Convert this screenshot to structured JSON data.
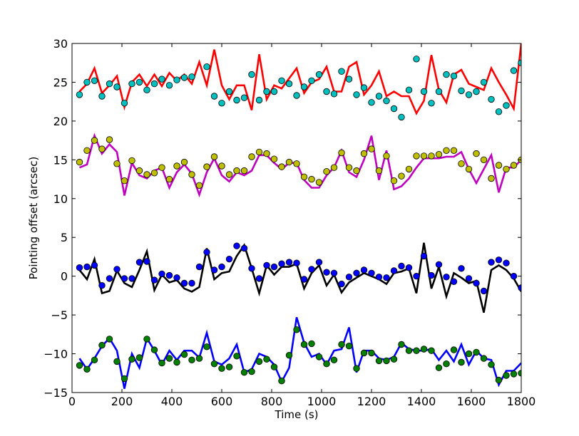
{
  "chart_data": {
    "type": "scatter",
    "xlabel": "Time (s)",
    "ylabel": "Pointing offset (arcsec)",
    "xlim": [
      0,
      1800
    ],
    "ylim": [
      -15,
      30
    ],
    "xticks": [
      "0",
      "200",
      "400",
      "600",
      "800",
      "1000",
      "1200",
      "1400",
      "1600",
      "1800"
    ],
    "yticks": [
      "−15",
      "−10",
      "−5",
      "0",
      "5",
      "10",
      "15",
      "20",
      "25",
      "30"
    ],
    "xtick_values": [
      0,
      200,
      400,
      600,
      800,
      1000,
      1200,
      1400,
      1600,
      1800
    ],
    "ytick_values": [
      -15,
      -10,
      -5,
      0,
      5,
      10,
      15,
      20,
      25,
      30
    ],
    "grid": false,
    "series": [
      {
        "style": "line",
        "color": "#ff0000",
        "x": [
          30,
          60,
          90,
          120,
          150,
          180,
          210,
          240,
          270,
          300,
          330,
          360,
          390,
          420,
          450,
          480,
          510,
          540,
          570,
          600,
          630,
          660,
          690,
          720,
          750,
          780,
          810,
          840,
          870,
          900,
          930,
          960,
          990,
          1020,
          1050,
          1080,
          1110,
          1140,
          1170,
          1200,
          1230,
          1260,
          1290,
          1320,
          1350,
          1380,
          1410,
          1440,
          1470,
          1500,
          1530,
          1560,
          1590,
          1620,
          1650,
          1680,
          1710,
          1740,
          1770,
          1800
        ],
        "values": [
          23.8,
          24.8,
          26.8,
          23.6,
          24.6,
          25.8,
          21.8,
          25.0,
          26.0,
          24.5,
          26.0,
          24.5,
          26.2,
          25.2,
          26.0,
          24.8,
          27.6,
          24.6,
          29.2,
          24.6,
          22.8,
          24.6,
          24.6,
          21.4,
          28.6,
          22.8,
          24.6,
          24.2,
          25.5,
          26.8,
          23.6,
          25.0,
          25.4,
          27.0,
          23.8,
          23.8,
          27.0,
          27.6,
          23.4,
          24.6,
          26.4,
          23.2,
          23.8,
          23.2,
          23.2,
          21.0,
          22.6,
          28.5,
          24.0,
          22.4,
          26.0,
          26.6,
          24.8,
          24.4,
          24.0,
          26.8,
          25.0,
          23.4,
          21.6,
          30.0
        ]
      },
      {
        "style": "points",
        "color": "#00bfbf",
        "x": [
          30,
          60,
          90,
          120,
          150,
          180,
          210,
          240,
          270,
          300,
          330,
          360,
          390,
          420,
          450,
          480,
          540,
          570,
          600,
          630,
          660,
          690,
          720,
          750,
          780,
          810,
          840,
          870,
          900,
          930,
          960,
          990,
          1020,
          1050,
          1080,
          1110,
          1140,
          1170,
          1200,
          1230,
          1260,
          1290,
          1320,
          1350,
          1380,
          1410,
          1440,
          1470,
          1500,
          1530,
          1560,
          1590,
          1620,
          1650,
          1680,
          1710,
          1740,
          1770,
          1800
        ],
        "values": [
          23.4,
          25.0,
          25.2,
          23.2,
          24.8,
          24.4,
          22.3,
          24.8,
          25.0,
          24.0,
          24.8,
          25.4,
          24.6,
          25.3,
          25.6,
          25.7,
          27.0,
          23.2,
          22.3,
          23.8,
          22.7,
          23.0,
          26.0,
          22.7,
          23.8,
          23.8,
          25.2,
          24.8,
          23.3,
          24.4,
          25.2,
          26.0,
          23.8,
          23.5,
          26.4,
          25.4,
          23.4,
          24.3,
          22.4,
          23.2,
          22.6,
          21.6,
          20.5,
          24.0,
          28.0,
          23.8,
          22.3,
          23.8,
          26.0,
          25.8,
          23.9,
          23.4,
          23.8,
          25.0,
          22.8,
          21.2,
          22.0,
          26.5,
          27.5
        ]
      },
      {
        "style": "line",
        "color": "#bf00bf",
        "x": [
          30,
          60,
          90,
          120,
          150,
          180,
          210,
          240,
          270,
          300,
          330,
          360,
          390,
          420,
          450,
          480,
          510,
          540,
          570,
          600,
          630,
          660,
          690,
          720,
          750,
          780,
          810,
          840,
          870,
          900,
          930,
          960,
          990,
          1020,
          1050,
          1080,
          1110,
          1140,
          1170,
          1200,
          1230,
          1260,
          1290,
          1320,
          1350,
          1380,
          1410,
          1440,
          1470,
          1500,
          1530,
          1560,
          1590,
          1620,
          1650,
          1680,
          1710,
          1740,
          1770,
          1800
        ],
        "values": [
          14.0,
          14.4,
          18.1,
          15.8,
          17.0,
          16.0,
          10.4,
          14.6,
          13.0,
          12.6,
          13.6,
          14.0,
          11.4,
          13.4,
          14.4,
          13.2,
          10.5,
          13.4,
          15.2,
          13.0,
          12.2,
          13.4,
          13.0,
          13.6,
          15.6,
          15.6,
          14.6,
          13.8,
          14.6,
          14.6,
          12.4,
          11.4,
          11.4,
          13.0,
          14.0,
          16.2,
          13.4,
          12.8,
          15.0,
          18.1,
          12.4,
          16.2,
          11.2,
          11.6,
          12.6,
          14.0,
          15.2,
          15.2,
          15.2,
          15.4,
          15.4,
          16.0,
          13.8,
          12.0,
          13.8,
          15.6,
          10.8,
          14.0,
          14.0,
          15.0
        ]
      },
      {
        "style": "points",
        "color": "#bfbf00",
        "x": [
          30,
          60,
          90,
          120,
          150,
          180,
          210,
          240,
          270,
          300,
          330,
          360,
          390,
          420,
          450,
          480,
          510,
          540,
          570,
          600,
          630,
          660,
          690,
          720,
          750,
          780,
          810,
          840,
          870,
          900,
          930,
          960,
          990,
          1020,
          1050,
          1080,
          1110,
          1140,
          1170,
          1200,
          1230,
          1260,
          1290,
          1320,
          1350,
          1380,
          1410,
          1440,
          1470,
          1500,
          1530,
          1560,
          1590,
          1620,
          1650,
          1680,
          1710,
          1740,
          1770,
          1800
        ],
        "values": [
          14.7,
          16.2,
          17.5,
          16.4,
          17.6,
          14.5,
          12.3,
          14.9,
          13.6,
          13.1,
          13.3,
          14.0,
          12.5,
          14.2,
          14.7,
          13.1,
          11.7,
          14.1,
          15.4,
          14.2,
          13.1,
          13.6,
          13.6,
          15.4,
          16.0,
          15.8,
          15.1,
          14.1,
          14.7,
          14.5,
          12.8,
          12.5,
          12.1,
          13.5,
          14.0,
          15.9,
          14.0,
          13.6,
          15.8,
          16.4,
          13.6,
          15.5,
          12.3,
          12.9,
          13.8,
          15.5,
          15.5,
          15.5,
          15.7,
          16.2,
          16.2,
          14.5,
          13.8,
          15.8,
          15.0,
          12.6,
          14.3,
          13.8,
          14.3,
          15.0
        ]
      },
      {
        "style": "line",
        "color": "#000000",
        "x": [
          30,
          60,
          90,
          120,
          150,
          180,
          210,
          240,
          270,
          300,
          330,
          360,
          390,
          420,
          450,
          480,
          510,
          540,
          570,
          600,
          630,
          660,
          690,
          720,
          750,
          780,
          810,
          840,
          870,
          900,
          930,
          960,
          990,
          1020,
          1050,
          1080,
          1110,
          1140,
          1170,
          1200,
          1230,
          1260,
          1290,
          1320,
          1350,
          1380,
          1410,
          1440,
          1470,
          1500,
          1530,
          1560,
          1590,
          1620,
          1650,
          1680,
          1710,
          1740,
          1770,
          1800
        ],
        "values": [
          0.8,
          -0.4,
          2.2,
          -2.2,
          -1.9,
          0.7,
          -0.9,
          -1.4,
          0.8,
          3.2,
          -1.8,
          0.2,
          -0.8,
          -0.5,
          -1.6,
          -2.0,
          -1.4,
          3.6,
          -0.4,
          0.4,
          0.6,
          2.6,
          4.0,
          1.0,
          -2.2,
          1.4,
          0.2,
          1.2,
          1.2,
          1.6,
          -1.6,
          0.4,
          1.4,
          -1.2,
          0.2,
          -2.1,
          -0.8,
          -0.2,
          0.4,
          0.0,
          -0.4,
          -1.0,
          0.4,
          0.6,
          1.0,
          -2.2,
          4.3,
          -1.6,
          1.2,
          -2.6,
          0.4,
          -0.2,
          -0.9,
          -0.6,
          -4.7,
          0.8,
          1.4,
          0.8,
          -0.3,
          -2.0
        ]
      },
      {
        "style": "points",
        "color": "#0000ff",
        "x": [
          30,
          60,
          90,
          120,
          150,
          180,
          210,
          240,
          270,
          300,
          330,
          360,
          390,
          420,
          450,
          480,
          510,
          540,
          570,
          600,
          630,
          660,
          690,
          720,
          750,
          780,
          810,
          840,
          870,
          900,
          930,
          960,
          990,
          1020,
          1050,
          1080,
          1110,
          1140,
          1170,
          1200,
          1230,
          1260,
          1290,
          1320,
          1350,
          1380,
          1410,
          1440,
          1470,
          1500,
          1530,
          1560,
          1590,
          1620,
          1650,
          1680,
          1710,
          1740,
          1770,
          1800
        ],
        "values": [
          1.1,
          1.2,
          1.4,
          -1.2,
          -0.3,
          0.9,
          -0.3,
          -0.3,
          1.8,
          1.9,
          -0.5,
          0.3,
          0.1,
          -0.2,
          -0.9,
          -0.9,
          1.2,
          3.1,
          0.8,
          1.2,
          2.2,
          3.9,
          3.6,
          1.0,
          -0.3,
          1.4,
          1.2,
          1.6,
          1.8,
          1.7,
          -0.4,
          0.9,
          1.8,
          0.5,
          0.4,
          -1.0,
          -0.1,
          0.4,
          0.8,
          0.4,
          -0.1,
          -0.2,
          0.7,
          1.3,
          1.1,
          0.0,
          2.6,
          0.1,
          1.5,
          -0.1,
          -0.7,
          1.0,
          -0.3,
          -0.9,
          -1.9,
          1.8,
          2.1,
          1.7,
          0.0,
          -1.5
        ]
      },
      {
        "style": "line",
        "color": "#0000ff",
        "x": [
          30,
          60,
          90,
          120,
          150,
          180,
          210,
          240,
          270,
          300,
          330,
          360,
          390,
          420,
          450,
          480,
          510,
          540,
          570,
          600,
          630,
          660,
          690,
          720,
          750,
          780,
          810,
          840,
          870,
          900,
          930,
          960,
          990,
          1020,
          1050,
          1080,
          1110,
          1140,
          1170,
          1200,
          1230,
          1260,
          1290,
          1320,
          1350,
          1380,
          1410,
          1440,
          1470,
          1500,
          1530,
          1560,
          1590,
          1620,
          1650,
          1680,
          1710,
          1740,
          1770,
          1800
        ],
        "values": [
          -10.6,
          -12.0,
          -10.6,
          -9.0,
          -8.0,
          -9.6,
          -14.5,
          -10.0,
          -11.8,
          -8.0,
          -9.6,
          -11.4,
          -9.6,
          -10.8,
          -9.6,
          -9.6,
          -10.5,
          -7.3,
          -11.0,
          -11.4,
          -10.6,
          -8.8,
          -12.4,
          -12.0,
          -10.0,
          -10.4,
          -11.4,
          -13.6,
          -11.8,
          -5.3,
          -8.6,
          -10.4,
          -10.0,
          -11.4,
          -9.6,
          -9.4,
          -6.6,
          -12.4,
          -9.6,
          -9.6,
          -10.6,
          -10.8,
          -10.4,
          -8.6,
          -9.4,
          -9.6,
          -9.6,
          -9.4,
          -10.8,
          -9.6,
          -11.0,
          -8.8,
          -11.4,
          -9.6,
          -10.6,
          -10.8,
          -14.0,
          -12.2,
          -12.2,
          -11.2
        ]
      },
      {
        "style": "points",
        "color": "#008000",
        "x": [
          30,
          60,
          90,
          120,
          150,
          180,
          210,
          240,
          270,
          300,
          330,
          360,
          390,
          420,
          450,
          480,
          510,
          540,
          570,
          600,
          630,
          660,
          690,
          720,
          750,
          780,
          810,
          840,
          870,
          900,
          930,
          960,
          990,
          1020,
          1050,
          1080,
          1110,
          1140,
          1170,
          1200,
          1230,
          1260,
          1290,
          1320,
          1350,
          1380,
          1410,
          1440,
          1470,
          1500,
          1530,
          1560,
          1590,
          1620,
          1650,
          1680,
          1710,
          1740,
          1770,
          1800
        ],
        "values": [
          -11.5,
          -12.0,
          -10.8,
          -8.9,
          -8.1,
          -11.0,
          -13.2,
          -10.7,
          -10.5,
          -8.1,
          -9.5,
          -11.2,
          -10.6,
          -11.1,
          -10.1,
          -10.8,
          -10.6,
          -9.1,
          -11.3,
          -11.9,
          -11.7,
          -10.3,
          -12.4,
          -12.3,
          -11.0,
          -10.7,
          -11.7,
          -13.5,
          -10.2,
          -6.9,
          -8.8,
          -8.7,
          -10.4,
          -11.3,
          -10.8,
          -8.8,
          -9.0,
          -11.9,
          -9.9,
          -9.9,
          -10.9,
          -10.9,
          -10.7,
          -8.8,
          -9.6,
          -9.6,
          -9.4,
          -9.6,
          -11.8,
          -11.3,
          -9.5,
          -11.1,
          -10.0,
          -9.8,
          -10.6,
          -11.4,
          -13.4,
          -12.8,
          -12.6,
          -12.5
        ]
      }
    ]
  }
}
